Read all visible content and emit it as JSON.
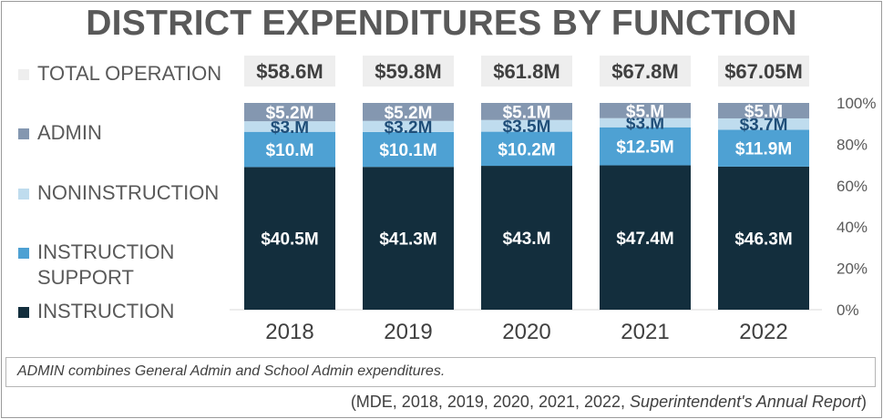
{
  "title": "DISTRICT EXPENDITURES BY FUNCTION",
  "legend": [
    {
      "label": "TOTAL OPERATION",
      "color": "#eeeeee"
    },
    {
      "label": "ADMIN",
      "color": "#8497b0"
    },
    {
      "label": "NONINSTRUCTION",
      "color": "#bfdcee"
    },
    {
      "label": "INSTRUCTION SUPPORT",
      "color": "#4ea1d3"
    },
    {
      "label": "INSTRUCTION",
      "color": "#132e3d"
    }
  ],
  "footnote": "ADMIN combines General Admin and School Admin expenditures.",
  "source_prefix": "(MDE,  2018, 2019, 2020, 2021, 2022, ",
  "source_italic": "Superintendent's Annual Report",
  "source_suffix": ")",
  "chart_data": {
    "type": "bar",
    "stacked": "percent",
    "categories": [
      "2018",
      "2019",
      "2020",
      "2021",
      "2022"
    ],
    "totals": [
      58.6,
      59.8,
      61.8,
      67.8,
      67.05
    ],
    "total_labels": [
      "$58.6M",
      "$59.8M",
      "$61.8M",
      "$67.8M",
      "$67.05M"
    ],
    "series": [
      {
        "name": "INSTRUCTION",
        "color": "#132e3d",
        "label_color": "#ffffff",
        "values": [
          40.5,
          41.3,
          43,
          47.4,
          46.3
        ],
        "labels": [
          "$40.5M",
          "$41.3M",
          "$43.M",
          "$47.4M",
          "$46.3M"
        ]
      },
      {
        "name": "INSTRUCTION SUPPORT",
        "color": "#4ea1d3",
        "label_color": "#ffffff",
        "values": [
          10,
          10.1,
          10.2,
          12.5,
          11.9
        ],
        "labels": [
          "$10.M",
          "$10.1M",
          "$10.2M",
          "$12.5M",
          "$11.9M"
        ]
      },
      {
        "name": "NONINSTRUCTION",
        "color": "#bfdcee",
        "label_color": "#1f4e79",
        "values": [
          3,
          3.2,
          3.5,
          3,
          3.7
        ],
        "labels": [
          "$3.M",
          "$3.2M",
          "$3.5M",
          "$3.M",
          "$3.7M"
        ]
      },
      {
        "name": "ADMIN",
        "color": "#8497b0",
        "label_color": "#ffffff",
        "values": [
          5.2,
          5.2,
          5.1,
          5,
          5
        ],
        "labels": [
          "$5.2M",
          "$5.2M",
          "$5.1M",
          "$5.M",
          "$5.M"
        ]
      }
    ],
    "y_axis": {
      "ticks": [
        0,
        20,
        40,
        60,
        80,
        100
      ],
      "tick_labels": [
        "0%",
        "20%",
        "40%",
        "60%",
        "80%",
        "100%"
      ],
      "position": "right"
    },
    "ylim": [
      0,
      100
    ],
    "grid": false,
    "legend_position": "left"
  }
}
